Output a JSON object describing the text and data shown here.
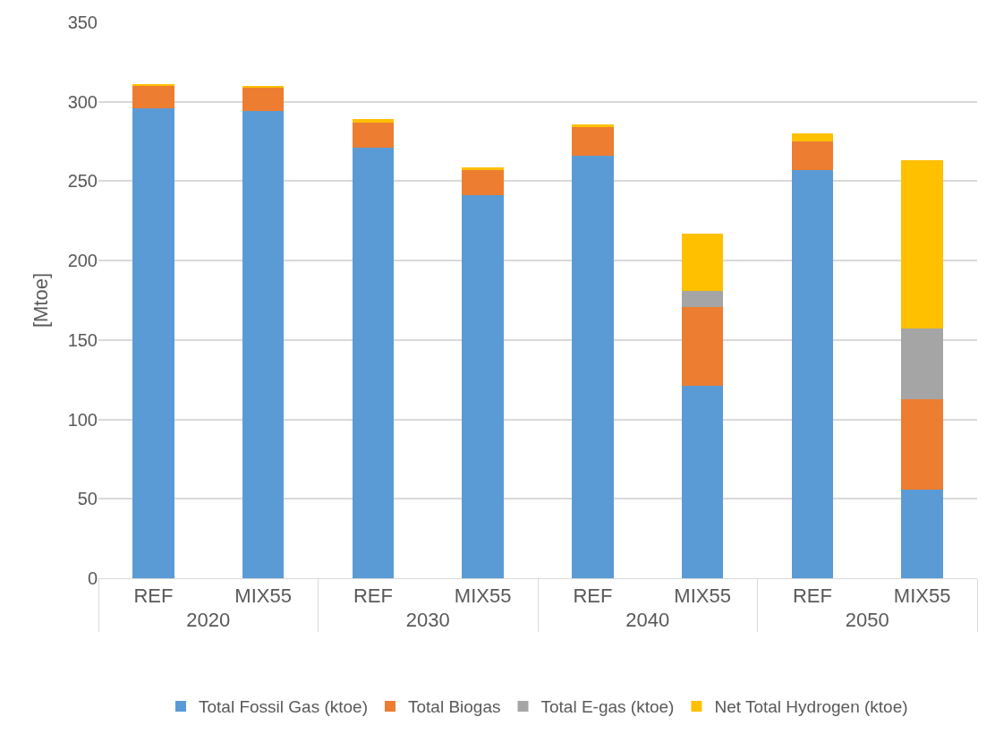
{
  "chart_data": {
    "type": "bar",
    "stacked": true,
    "ylabel": "[Mtoe]",
    "categories": [
      "REF",
      "MIX55",
      "REF",
      "MIX55",
      "REF",
      "MIX55",
      "REF",
      "MIX55"
    ],
    "annotations": [
      "2020",
      "2030",
      "2040",
      "2050"
    ],
    "series": [
      {
        "name": "Total Fossil Gas (ktoe)",
        "color": "#5b9bd5",
        "values": [
          296,
          294,
          271,
          241,
          266,
          121,
          257,
          56
        ]
      },
      {
        "name": "Total Biogas",
        "color": "#ed7d31",
        "values": [
          14,
          15,
          16,
          16,
          18,
          50,
          18,
          57
        ]
      },
      {
        "name": "Total E-gas (ktoe)",
        "color": "#a5a5a5",
        "values": [
          0,
          0,
          0,
          0,
          0,
          10,
          0,
          44
        ]
      },
      {
        "name": "Net Total Hydrogen (ktoe)",
        "color": "#ffc000",
        "values": [
          1,
          1,
          2,
          1.5,
          2,
          36,
          5,
          106
        ]
      }
    ],
    "ylim": [
      0,
      350
    ],
    "yticks": [
      0,
      50,
      100,
      150,
      200,
      250,
      300,
      350
    ],
    "grid": "y",
    "legend": "bottom"
  }
}
